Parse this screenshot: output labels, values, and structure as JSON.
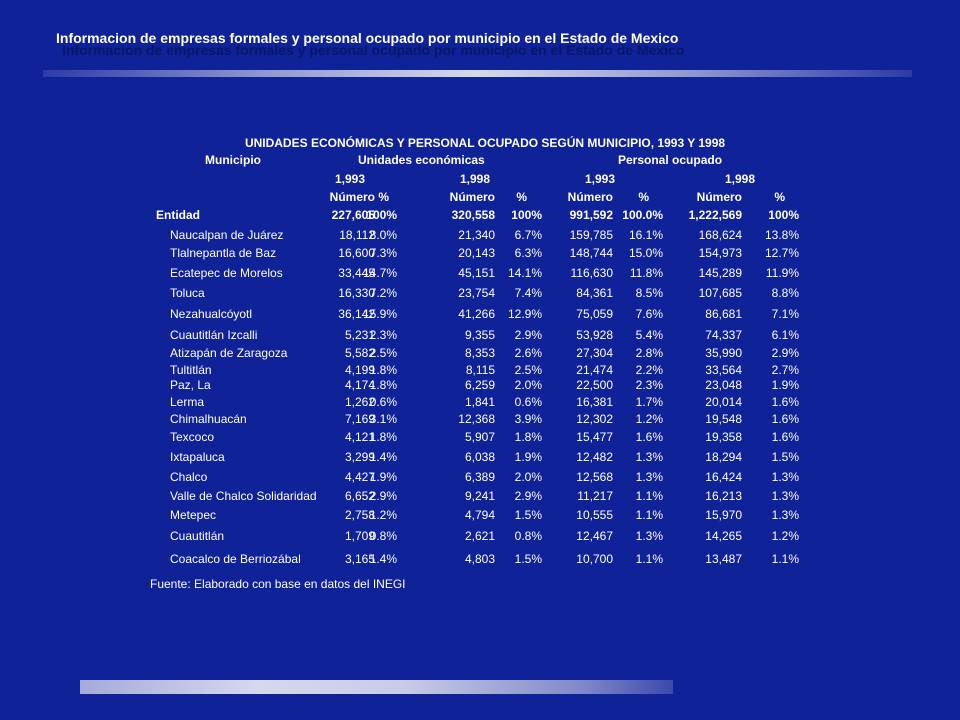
{
  "slide": {
    "title": "Informacion de empresas formales y personal ocupado por municipio en el Estado de Mexico"
  },
  "table": {
    "heading": "UNIDADES ECONÓMICAS Y PERSONAL OCUPADO SEGÚN MUNICIPIO, 1993 Y 1998",
    "col_municipio": "Municipio",
    "group_ue": "Unidades económicas",
    "group_po": "Personal ocupado",
    "year_1993": "1,993",
    "year_1998": "1,998",
    "numero": "Número",
    "pct": "%",
    "total": {
      "label": "Entidad",
      "ue93": "227,605",
      "ue93p": "100%",
      "ue98": "320,558",
      "ue98p": "100%",
      "po93": "991,592",
      "po93p": "100.0%",
      "po98": "1,222,569",
      "po98p": "100%"
    },
    "rows": [
      [
        "Naucalpan de Juárez",
        "18,112",
        "8.0%",
        "21,340",
        "6.7%",
        "159,785",
        "16.1%",
        "168,624",
        "13.8%"
      ],
      [
        "Tlalnepantla de Baz",
        "16,600",
        "7.3%",
        "20,143",
        "6.3%",
        "148,744",
        "15.0%",
        "154,973",
        "12.7%"
      ],
      [
        "Ecatepec de Morelos",
        "33,445",
        "14.7%",
        "45,151",
        "14.1%",
        "116,630",
        "11.8%",
        "145,289",
        "11.9%"
      ],
      [
        "Toluca",
        "16,330",
        "7.2%",
        "23,754",
        "7.4%",
        "84,361",
        "8.5%",
        "107,685",
        "8.8%"
      ],
      [
        "Nezahualcóyotl",
        "36,142",
        "15.9%",
        "41,266",
        "12.9%",
        "75,059",
        "7.6%",
        "86,681",
        "7.1%"
      ],
      [
        "Cuautitlán Izcalli",
        "5,231",
        "2.3%",
        "9,355",
        "2.9%",
        "53,928",
        "5.4%",
        "74,337",
        "6.1%"
      ],
      [
        "Atizapán de Zaragoza",
        "5,582",
        "2.5%",
        "8,353",
        "2.6%",
        "27,304",
        "2.8%",
        "35,990",
        "2.9%"
      ],
      [
        "Tultitlán",
        "4,199",
        "1.8%",
        "8,115",
        "2.5%",
        "21,474",
        "2.2%",
        "33,564",
        "2.7%"
      ],
      [
        "Paz, La",
        "4,174",
        "1.8%",
        "6,259",
        "2.0%",
        "22,500",
        "2.3%",
        "23,048",
        "1.9%"
      ],
      [
        "Lerma",
        "1,262",
        "0.6%",
        "1,841",
        "0.6%",
        "16,381",
        "1.7%",
        "20,014",
        "1.6%"
      ],
      [
        "Chimalhuacán",
        "7,169",
        "3.1%",
        "12,368",
        "3.9%",
        "12,302",
        "1.2%",
        "19,548",
        "1.6%"
      ],
      [
        "Texcoco",
        "4,121",
        "1.8%",
        "5,907",
        "1.8%",
        "15,477",
        "1.6%",
        "19,358",
        "1.6%"
      ],
      [
        "Ixtapaluca",
        "3,299",
        "1.4%",
        "6,038",
        "1.9%",
        "12,482",
        "1.3%",
        "18,294",
        "1.5%"
      ],
      [
        "Chalco",
        "4,427",
        "1.9%",
        "6,389",
        "2.0%",
        "12,568",
        "1.3%",
        "16,424",
        "1.3%"
      ],
      [
        "Valle de Chalco Solidaridad",
        "6,652",
        "2.9%",
        "9,241",
        "2.9%",
        "11,217",
        "1.1%",
        "16,213",
        "1.3%"
      ],
      [
        "Metepec",
        "2,758",
        "1.2%",
        "4,794",
        "1.5%",
        "10,555",
        "1.1%",
        "15,970",
        "1.3%"
      ],
      [
        "Cuautitlán",
        "1,709",
        "0.8%",
        "2,621",
        "0.8%",
        "12,467",
        "1.3%",
        "14,265",
        "1.2%"
      ],
      [
        "Coacalco de Berriozábal",
        "3,165",
        "1.4%",
        "4,803",
        "1.5%",
        "10,700",
        "1.1%",
        "13,487",
        "1.1%"
      ]
    ],
    "source": "Fuente: Elaborado con base en datos del INEGI"
  }
}
